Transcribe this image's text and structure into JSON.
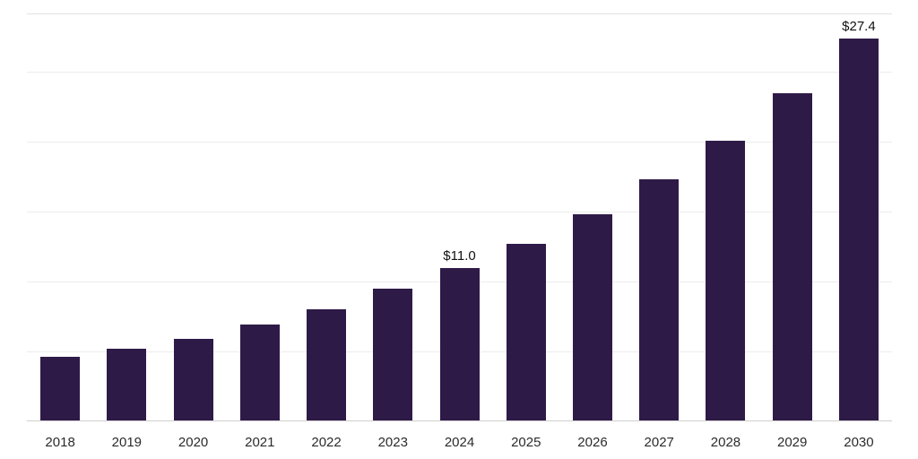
{
  "chart_data": {
    "type": "bar",
    "title": "",
    "xlabel": "",
    "ylabel": "",
    "categories": [
      "2018",
      "2019",
      "2020",
      "2021",
      "2022",
      "2023",
      "2024",
      "2025",
      "2026",
      "2027",
      "2028",
      "2029",
      "2030"
    ],
    "values": [
      4.6,
      5.2,
      5.9,
      6.9,
      8.0,
      9.5,
      11.0,
      12.7,
      14.8,
      17.3,
      20.1,
      23.5,
      27.4
    ],
    "data_labels": [
      "",
      "",
      "",
      "",
      "",
      "",
      "$11.0",
      "",
      "",
      "",
      "",
      "",
      "$27.4"
    ],
    "ylim": [
      0,
      29.2
    ],
    "gridlines": [
      5,
      10,
      15,
      20,
      25,
      29.2
    ],
    "grid": "horizontal",
    "legend": "none",
    "bar_color": "#2e1a47",
    "gridline_color": "#ececec",
    "axis_line_color": "#cfcfcf",
    "tick_label_color": "#2b2b2b",
    "data_label_color": "#111111"
  }
}
